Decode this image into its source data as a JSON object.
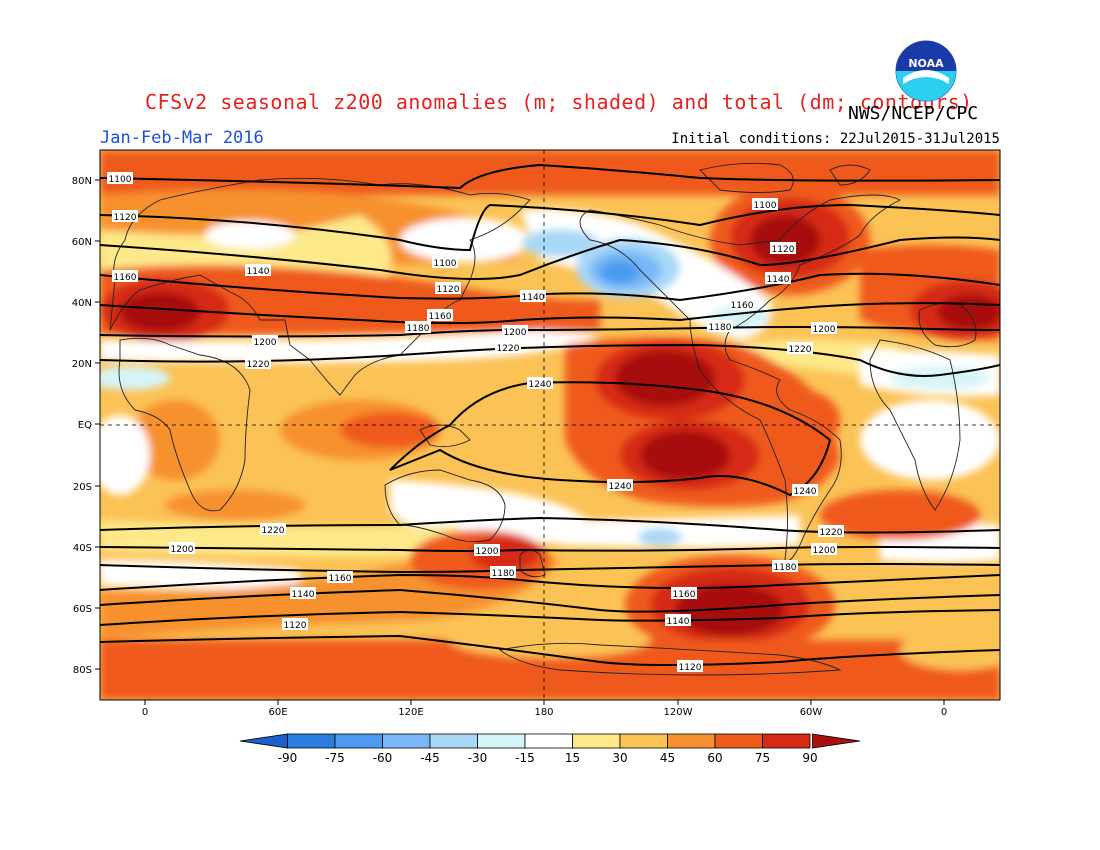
{
  "header": {
    "title": "CFSv2 seasonal z200 anomalies (m; shaded) and total (dm; contours)",
    "agency": "NWS/NCEP/CPC",
    "season": "Jan-Feb-Mar 2016",
    "initial_conditions": "Initial conditions: 22Jul2015-31Jul2015",
    "logo_text": "NOAA"
  },
  "map": {
    "lat_labels": [
      "80N",
      "60N",
      "40N",
      "20N",
      "EQ",
      "20S",
      "40S",
      "60S",
      "80S"
    ],
    "lon_labels": [
      "0",
      "60E",
      "120E",
      "180",
      "120W",
      "60W",
      "0"
    ],
    "contour_labels": [
      "1100",
      "1100",
      "1100",
      "1120",
      "1120",
      "1120",
      "1120",
      "1140",
      "1140",
      "1140",
      "1140",
      "1140",
      "1160",
      "1160",
      "1160",
      "1160",
      "1160",
      "1180",
      "1180",
      "1180",
      "1180",
      "1200",
      "1200",
      "1200",
      "1200",
      "1200",
      "1200",
      "1220",
      "1220",
      "1220",
      "1220",
      "1220",
      "1240",
      "1240",
      "1240",
      "1120"
    ]
  },
  "colorbar": {
    "labels": [
      "-90",
      "-75",
      "-60",
      "-45",
      "-30",
      "-15",
      "15",
      "30",
      "45",
      "60",
      "75",
      "90"
    ],
    "colors": [
      "#1a5fd0",
      "#2a7ee0",
      "#4c9bf0",
      "#78b8f6",
      "#a8d8f8",
      "#d6f4f8",
      "#ffffff",
      "#fde98a",
      "#fbc256",
      "#f7912e",
      "#ef5a1c",
      "#d62a16",
      "#a80f0f"
    ]
  }
}
